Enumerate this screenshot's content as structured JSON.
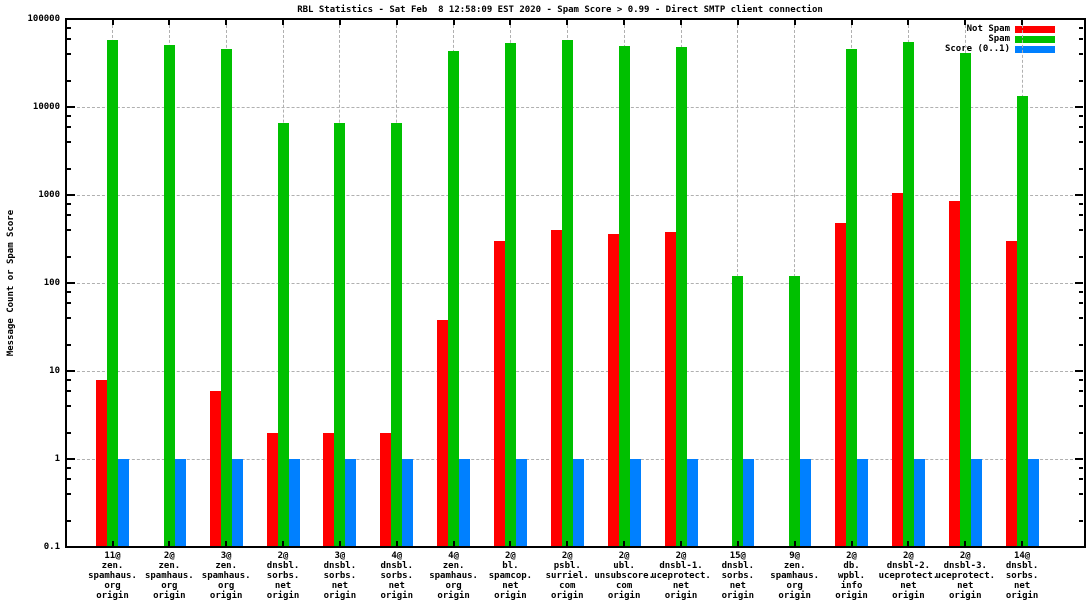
{
  "chart_data": {
    "type": "bar",
    "title": "RBL Statistics - Sat Feb  8 12:58:09 EST 2020 - Spam Score > 0.99 - Direct SMTP client connection",
    "ylabel": "Message Count or Spam Score",
    "yscale": "log",
    "ylim": [
      0.1,
      100000
    ],
    "grid": true,
    "ytick_values": [
      100000,
      10000,
      1000,
      100,
      10,
      1,
      0.1
    ],
    "ytick_labels": [
      "100000",
      "10000",
      "1000",
      "100",
      "10",
      "1",
      "0.1"
    ],
    "legend": {
      "position": "top-right",
      "entries": [
        {
          "label": "Not Spam",
          "color": "#ff0000"
        },
        {
          "label": "Spam",
          "color": "#00c000"
        },
        {
          "label": "Score (0..1)",
          "color": "#0080ff"
        }
      ]
    },
    "categories": [
      [
        "11@",
        "zen.",
        "spamhaus.",
        "org",
        "origin"
      ],
      [
        "2@",
        "zen.",
        "spamhaus.",
        "org",
        "origin"
      ],
      [
        "3@",
        "zen.",
        "spamhaus.",
        "org",
        "origin"
      ],
      [
        "2@",
        "dnsbl.",
        "sorbs.",
        "net",
        "origin"
      ],
      [
        "3@",
        "dnsbl.",
        "sorbs.",
        "net",
        "origin"
      ],
      [
        "4@",
        "dnsbl.",
        "sorbs.",
        "net",
        "origin"
      ],
      [
        "4@",
        "zen.",
        "spamhaus.",
        "org",
        "origin"
      ],
      [
        "2@",
        "bl.",
        "spamcop.",
        "net",
        "origin"
      ],
      [
        "2@",
        "psbl.",
        "surriel.",
        "com",
        "origin"
      ],
      [
        "2@",
        "ubl.",
        "unsubscore.",
        "com",
        "origin"
      ],
      [
        "2@",
        "dnsbl-1.",
        "uceprotect.",
        "net",
        "origin"
      ],
      [
        "15@",
        "dnsbl.",
        "sorbs.",
        "net",
        "origin"
      ],
      [
        "9@",
        "zen.",
        "spamhaus.",
        "org",
        "origin"
      ],
      [
        "2@",
        "db.",
        "wpbl.",
        "info",
        "origin"
      ],
      [
        "2@",
        "dnsbl-2.",
        "uceprotect.",
        "net",
        "origin"
      ],
      [
        "2@",
        "dnsbl-3.",
        "uceprotect.",
        "net",
        "origin"
      ],
      [
        "14@",
        "dnsbl.",
        "sorbs.",
        "net",
        "origin"
      ]
    ],
    "series": [
      {
        "name": "Not Spam",
        "color": "#ff0000",
        "values": [
          8,
          null,
          6,
          2,
          2,
          2,
          38,
          300,
          400,
          360,
          380,
          null,
          null,
          480,
          1050,
          850,
          300
        ]
      },
      {
        "name": "Spam",
        "color": "#00c000",
        "values": [
          58000,
          50000,
          46000,
          6600,
          6600,
          6600,
          43000,
          53000,
          58000,
          49000,
          48000,
          120,
          120,
          46000,
          55000,
          41000,
          13500
        ]
      },
      {
        "name": "Score (0..1)",
        "color": "#0080ff",
        "values": [
          1,
          1,
          1,
          1,
          1,
          1,
          1,
          1,
          1,
          1,
          1,
          1,
          1,
          1,
          1,
          1,
          1
        ]
      }
    ]
  }
}
